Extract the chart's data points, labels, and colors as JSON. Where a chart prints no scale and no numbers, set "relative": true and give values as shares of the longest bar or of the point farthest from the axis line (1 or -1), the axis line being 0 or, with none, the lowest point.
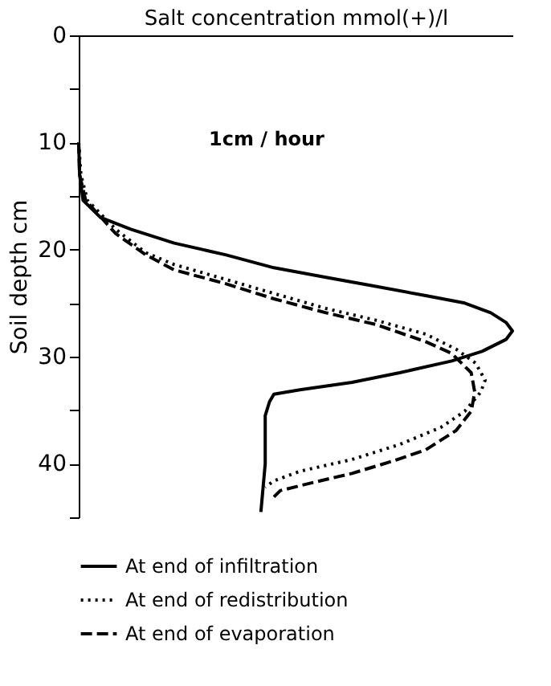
{
  "chart_data": {
    "type": "line",
    "orientation": "horizontal",
    "relative": true,
    "xlabel": "Salt concentration  mmol(+)/l",
    "ylabel": "Soil depth cm",
    "annotations": [
      "1cm / hour"
    ],
    "ylim": [
      45,
      0
    ],
    "yticks": [
      0,
      {
        "value": 5,
        "label": null
      },
      10,
      {
        "value": 15,
        "label": null
      },
      20,
      {
        "value": 25,
        "label": null
      },
      30,
      {
        "value": 35,
        "label": null
      },
      40,
      {
        "value": 45,
        "label": null
      }
    ],
    "grid": false,
    "legend": "bottom",
    "marker": "none",
    "series": [
      {
        "name": "At end of infiltration",
        "color": "#000000",
        "line_style": "solid",
        "x": [
          10,
          13,
          15.4,
          17.0,
          18.1,
          19.4,
          20.5,
          21.7,
          22.6,
          23.4,
          24.3,
          25.0,
          25.9,
          26.8,
          27.6,
          28.4,
          29.5,
          30.4,
          31.5,
          32.4,
          33.1,
          33.5,
          34.2,
          35.5,
          40,
          44.5
        ],
        "values": [
          0,
          0.002,
          0.01,
          0.05,
          0.12,
          0.22,
          0.34,
          0.45,
          0.57,
          0.68,
          0.8,
          0.89,
          0.95,
          0.985,
          1.0,
          0.985,
          0.93,
          0.86,
          0.74,
          0.63,
          0.51,
          0.45,
          0.44,
          0.43,
          0.43,
          0.42
        ]
      },
      {
        "name": "At end of redistribution",
        "color": "#000000",
        "line_style": "dotted",
        "x": [
          10,
          13,
          15.4,
          18.1,
          20.3,
          21.4,
          22.8,
          24.1,
          25.5,
          26.6,
          27.9,
          29.3,
          30.6,
          32.2,
          33.3,
          35.1,
          36.6,
          38.2,
          39.6,
          40.7,
          41.6,
          42.2
        ],
        "values": [
          0,
          0.005,
          0.02,
          0.085,
          0.155,
          0.22,
          0.34,
          0.45,
          0.57,
          0.685,
          0.8,
          0.87,
          0.915,
          0.937,
          0.927,
          0.89,
          0.835,
          0.74,
          0.63,
          0.51,
          0.45,
          0.43
        ]
      },
      {
        "name": "At end of evaporation",
        "color": "#000000",
        "line_style": "dashed",
        "x": [
          10,
          13,
          15.4,
          18.5,
          20.5,
          21.9,
          23.2,
          24.6,
          25.9,
          27.0,
          28.6,
          29.7,
          31.5,
          33.3,
          35.1,
          36.9,
          38.7,
          39.8,
          40.9,
          41.8,
          42.5,
          43.1
        ],
        "values": [
          0,
          0.002,
          0.016,
          0.085,
          0.155,
          0.22,
          0.34,
          0.45,
          0.57,
          0.685,
          0.8,
          0.86,
          0.905,
          0.913,
          0.905,
          0.87,
          0.8,
          0.72,
          0.63,
          0.535,
          0.465,
          0.45
        ]
      }
    ]
  }
}
